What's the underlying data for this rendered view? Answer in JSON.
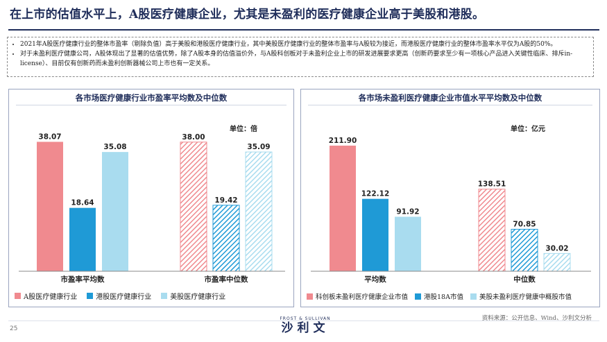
{
  "page_title": "在上市的估值水平上，A股医疗健康企业，尤其是未盈利的医疗健康企业高于美股和港股。",
  "bullets": [
    "2021年A股医疗健康行业的整体市盈率（剔除负值）高于美股和港股医疗健康行业，其中美股医疗健康行业的整体市盈率与A股较为接近，而港股医疗健康行业的整体市盈率水平仅为A股的50%。",
    "对于未盈利医疗健康公司，A股体现出了显著的估值优势，除了A股本身的估值溢价外，与A股科创板对于未盈利企业上市的研发进展要求更高（创新药要求至少有一项核心产品进入关键性临床、排斥in-license）、目前仅有创新药而未盈利创新器械公司上市也有一定关系。"
  ],
  "left_chart": {
    "title": "各市场医疗健康行业市盈率平均数及中位数",
    "unit": "单位：倍",
    "legend": [
      "A股医疗健康行业",
      "港股医疗健康行业",
      "美股医疗健康行业"
    ]
  },
  "right_chart": {
    "title": "各市场未盈利医疗健康企业市值水平平均数及中位数",
    "unit": "单位：亿元",
    "legend": [
      "科创板未盈利医疗健康企业市值",
      "港股18A市值",
      "美股未盈利医疗健康中概股市值"
    ]
  },
  "colors": {
    "red": "#f08a8f",
    "blue": "#1f9ad6",
    "lightblue": "#a9dcef",
    "navy": "#1f2d5a"
  },
  "chart_data": [
    {
      "type": "bar",
      "title": "各市场医疗健康行业市盈率平均数及中位数",
      "categories": [
        "市盈率平均数",
        "市盈率中位数"
      ],
      "series": [
        {
          "name": "A股医疗健康行业",
          "values": [
            38.07,
            38.0
          ]
        },
        {
          "name": "港股医疗健康行业",
          "values": [
            18.64,
            19.42
          ]
        },
        {
          "name": "美股医疗健康行业",
          "values": [
            35.08,
            35.09
          ]
        }
      ],
      "ylabel": "单位：倍",
      "ylim": [
        0,
        40
      ]
    },
    {
      "type": "bar",
      "title": "各市场未盈利医疗健康企业市值水平平均数及中位数",
      "categories": [
        "平均数",
        "中位数"
      ],
      "series": [
        {
          "name": "科创板未盈利医疗健康企业市值",
          "values": [
            211.9,
            138.51
          ]
        },
        {
          "name": "港股18A市值",
          "values": [
            122.12,
            70.85
          ]
        },
        {
          "name": "美股未盈利医疗健康中概股市值",
          "values": [
            91.92,
            30.02
          ]
        }
      ],
      "ylabel": "单位：亿元",
      "ylim": [
        0,
        220
      ]
    }
  ],
  "source": "资料来源：公开信息、Wind、沙利文分析",
  "page_number": "25",
  "brand": {
    "small": "FROST & SULLIVAN",
    "big": "沙利文"
  }
}
